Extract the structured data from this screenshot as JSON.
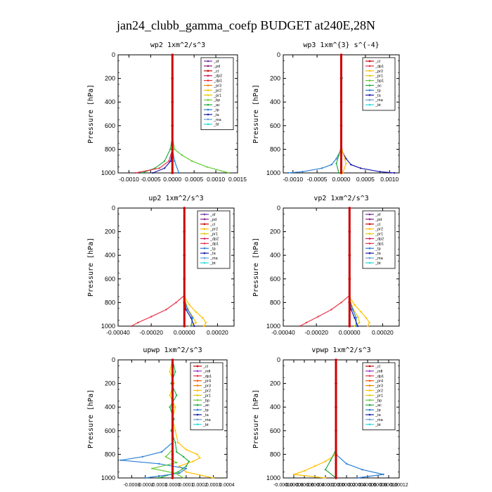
{
  "figure_title": "jan24_clubb_gamma_coefp  BUDGET at240E,28N",
  "colors": {
    "_sf": "#7030a0",
    "_pd": "#8b1a8b",
    "_cl": "#cc0000",
    "_dp2": "#d4145a",
    "_dp1": "#e8334a",
    "_pr3": "#f08000",
    "_pr2": "#ffc000",
    "_pr1": "#e6c800",
    "_bp": "#66cc33",
    "_bp1": "#66cc33",
    "_ac": "#22aa44",
    "_tp": "#2a7fd4",
    "_ta": "#1a1aaa",
    "_ma": "#6a9fd4",
    "_bt": "#22dddd",
    "_mfl": "#9933cc",
    "_pr4": "#ff5500",
    "_pr3b": "#ff9900"
  },
  "chart_data": [
    {
      "type": "line",
      "title": "wp2   1xm^2/s^3",
      "ylabel": "Pressure [hPa]",
      "xlim": [
        -0.00125,
        0.0015
      ],
      "xticks": [
        -0.001,
        -0.0005,
        0.0,
        0.0005,
        0.001,
        0.0015
      ],
      "xtick_labels": [
        "-0.0010",
        "-0.0005",
        "0.0000",
        "0.0005",
        "0.0010",
        "0.0015"
      ],
      "ylim": [
        0,
        1000
      ],
      "yticks": [
        0,
        200,
        400,
        600,
        800,
        1000
      ],
      "legend": [
        "_sf",
        "_pd",
        "_cl",
        "_dp2",
        "_dp1",
        "_pr3",
        "_pr2",
        "_pr1",
        "_bp",
        "_ac",
        "_tp",
        "_ta",
        "_ma",
        "_bt"
      ],
      "series": [
        {
          "name": "_bp",
          "y": [
            0,
            700,
            800,
            850,
            900,
            950,
            1000
          ],
          "x": [
            0,
            0,
            5e-05,
            0.00022,
            0.00045,
            0.0008,
            0.0013
          ]
        },
        {
          "name": "_ac",
          "y": [
            0,
            700,
            800,
            900,
            960,
            1000
          ],
          "x": [
            0,
            0,
            -5e-05,
            -0.00018,
            -0.0004,
            -0.0007
          ]
        },
        {
          "name": "_dp1",
          "y": [
            0,
            800,
            900,
            960,
            1000
          ],
          "x": [
            0,
            0,
            -8e-05,
            -0.0003,
            -0.00085
          ]
        },
        {
          "name": "_ta",
          "y": [
            0,
            800,
            900,
            960,
            1000
          ],
          "x": [
            0,
            0,
            -4e-05,
            -0.00018,
            -0.00045
          ]
        },
        {
          "name": "_tp",
          "y": [
            0,
            800,
            900,
            1000
          ],
          "x": [
            0,
            0,
            5e-05,
            0.00015
          ]
        },
        {
          "name": "_cl",
          "y": [
            0,
            200,
            400,
            600,
            800,
            1000
          ],
          "x": [
            0,
            0,
            0,
            0,
            0,
            0
          ]
        }
      ]
    },
    {
      "type": "line",
      "title": "wp3   1xm^{3} s^{-4}",
      "ylabel": "Pressure [hPa]",
      "xlim": [
        -0.0012,
        0.0012
      ],
      "xticks": [
        -0.001,
        -0.0005,
        0.0,
        0.0005,
        0.001
      ],
      "xtick_labels": [
        "-0.0010",
        "-0.0005",
        "0.0000",
        "0.0005",
        "0.0010"
      ],
      "ylim": [
        0,
        1000
      ],
      "yticks": [
        0,
        200,
        400,
        600,
        800,
        1000
      ],
      "legend": [
        "_cl",
        "_dp1",
        "_pr2",
        "_pr1",
        "_bp1",
        "_ac",
        "_tp",
        "_ta",
        "_ma",
        "_bt"
      ],
      "series": [
        {
          "name": "_ta",
          "y": [
            0,
            800,
            880,
            930,
            960,
            990,
            1000
          ],
          "x": [
            0,
            0,
            0.0001,
            0.0002,
            0.0004,
            0.0008,
            0.0011
          ]
        },
        {
          "name": "_tp",
          "y": [
            0,
            800,
            880,
            930,
            960,
            990,
            1000
          ],
          "x": [
            0,
            0,
            -0.0001,
            -0.0002,
            -0.0004,
            -0.0008,
            -0.0011
          ]
        },
        {
          "name": "_ac",
          "y": [
            0,
            780,
            850,
            920,
            1000
          ],
          "x": [
            0,
            0,
            -5e-05,
            -0.0001,
            -5e-05
          ]
        },
        {
          "name": "_pr2",
          "y": [
            0,
            780,
            850,
            920,
            1000
          ],
          "x": [
            0,
            0,
            5e-05,
            0.0001,
            3e-05
          ]
        },
        {
          "name": "_bt",
          "y": [
            0,
            185,
            195,
            205,
            1000
          ],
          "x": [
            0,
            0,
            2e-05,
            0,
            0
          ]
        },
        {
          "name": "_cl",
          "y": [
            0,
            200,
            400,
            600,
            800,
            1000
          ],
          "x": [
            0,
            0,
            0,
            0,
            0,
            0
          ]
        }
      ]
    },
    {
      "type": "line",
      "title": "up2   1xm^2/s^3",
      "ylabel": "Pressure [hPa]",
      "xlim": [
        -0.0004,
        0.0003
      ],
      "xticks": [
        -0.0004,
        -0.0002,
        0.0,
        0.0002
      ],
      "xtick_labels": [
        "-0.00040",
        "-0.00020",
        "0.00000",
        "0.00020"
      ],
      "ylim": [
        0,
        1000
      ],
      "yticks": [
        0,
        200,
        400,
        600,
        800,
        1000
      ],
      "legend": [
        "_sf",
        "_pd",
        "_cl",
        "_pr2",
        "_pr1",
        "_dp2",
        "_dp1",
        "_tp",
        "_ta",
        "_ma",
        "_bt"
      ],
      "series": [
        {
          "name": "_dp1",
          "y": [
            0,
            740,
            800,
            860,
            920,
            970,
            1000
          ],
          "x": [
            0,
            0,
            -5e-05,
            -0.00011,
            -0.0002,
            -0.00028,
            -0.00032
          ]
        },
        {
          "name": "_pr2",
          "y": [
            0,
            750,
            820,
            880,
            930,
            970,
            1000
          ],
          "x": [
            0,
            0,
            3e-05,
            7e-05,
            0.00011,
            0.00013,
            0.00012
          ]
        },
        {
          "name": "_pr1",
          "y": [
            0,
            760,
            850,
            920,
            970,
            1000
          ],
          "x": [
            0,
            0,
            2e-05,
            5e-05,
            7e-05,
            3e-05
          ]
        },
        {
          "name": "_tp",
          "y": [
            0,
            780,
            860,
            930,
            1000
          ],
          "x": [
            0,
            0,
            2e-05,
            5e-05,
            4e-05
          ]
        },
        {
          "name": "_ta",
          "y": [
            0,
            780,
            860,
            930,
            1000
          ],
          "x": [
            0,
            0,
            1e-05,
            4e-05,
            6e-05
          ]
        },
        {
          "name": "_cl",
          "y": [
            0,
            200,
            400,
            600,
            800,
            1000
          ],
          "x": [
            0,
            0,
            0,
            0,
            0,
            0
          ]
        }
      ]
    },
    {
      "type": "line",
      "title": "vp2   1xm^2/s^3",
      "ylabel": "Pressure [hPa]",
      "xlim": [
        -0.0004,
        0.0003
      ],
      "xticks": [
        -0.0004,
        -0.0002,
        0.0,
        0.0002
      ],
      "xtick_labels": [
        "-0.00040",
        "-0.00020",
        "0.00000",
        "0.00020"
      ],
      "ylim": [
        0,
        1000
      ],
      "yticks": [
        0,
        200,
        400,
        600,
        800,
        1000
      ],
      "legend": [
        "_sf",
        "_pd",
        "_cl",
        "_pr2",
        "_pr1",
        "_dp2",
        "_dp1",
        "_tp",
        "_ta",
        "_ma",
        "_bt"
      ],
      "series": [
        {
          "name": "_dp1",
          "y": [
            0,
            740,
            800,
            860,
            920,
            970,
            1000
          ],
          "x": [
            0,
            0,
            -5e-05,
            -0.00011,
            -0.00019,
            -0.00026,
            -0.0003
          ]
        },
        {
          "name": "_pr2",
          "y": [
            0,
            750,
            820,
            880,
            930,
            970,
            1000
          ],
          "x": [
            0,
            0,
            3e-05,
            7e-05,
            0.0001,
            0.00012,
            0.00011
          ]
        },
        {
          "name": "_pr1",
          "y": [
            0,
            760,
            850,
            920,
            970,
            1000
          ],
          "x": [
            0,
            0,
            2e-05,
            5e-05,
            6e-05,
            3e-05
          ]
        },
        {
          "name": "_tp",
          "y": [
            0,
            780,
            860,
            930,
            1000
          ],
          "x": [
            0,
            0,
            2e-05,
            4e-05,
            4e-05
          ]
        },
        {
          "name": "_ta",
          "y": [
            0,
            780,
            860,
            930,
            1000
          ],
          "x": [
            0,
            0,
            1e-05,
            3e-05,
            5e-05
          ]
        },
        {
          "name": "_cl",
          "y": [
            0,
            200,
            400,
            600,
            800,
            1000
          ],
          "x": [
            0,
            0,
            0,
            0,
            0,
            0
          ]
        }
      ]
    },
    {
      "type": "line",
      "title": "upwp   1xm^2/s^3",
      "ylabel": "Pressure [hPa]",
      "xlim": [
        -0.0004,
        0.0004
      ],
      "xticks": [
        -0.0003,
        -0.0002,
        -0.0001,
        0.0,
        0.0001,
        0.0002,
        0.0003,
        0.0004
      ],
      "xtick_labels": [
        "-0.0003",
        "-0.0002",
        "-0.0001",
        "0.0000",
        "0.0001",
        "0.0002",
        "0.0003",
        "0.0004"
      ],
      "ylim": [
        0,
        1000
      ],
      "yticks": [
        0,
        200,
        400,
        600,
        800,
        1000
      ],
      "legend": [
        "_cl",
        "_mfl",
        "_dp1",
        "_pr4",
        "_pr3",
        "_pr2",
        "_pr1",
        "_bp",
        "_ac",
        "_tp",
        "_ta",
        "_ma",
        "_bt"
      ],
      "series": [
        {
          "name": "_pr2",
          "y": [
            0,
            100,
            200,
            300,
            400,
            500,
            600,
            700,
            760,
            800,
            830,
            860,
            900,
            950,
            1000
          ],
          "x": [
            0,
            -2e-05,
            1e-05,
            -2e-05,
            2e-05,
            0,
            2e-05,
            4e-05,
            0.0001,
            0.00018,
            0.0002,
            0.00015,
            5e-05,
            0.0001,
            0.0003
          ]
        },
        {
          "name": "_ac",
          "y": [
            0,
            100,
            200,
            300,
            400,
            500,
            600,
            700,
            780,
            820,
            860,
            900,
            950,
            1000
          ],
          "x": [
            0,
            2e-05,
            -1e-05,
            3e-05,
            -2e-05,
            1e-05,
            -1e-05,
            2e-05,
            3e-05,
            8e-05,
            0.00012,
            0.0001,
            4e-05,
            -0.0001
          ]
        },
        {
          "name": "_tp",
          "y": [
            0,
            700,
            780,
            820,
            850,
            880,
            920,
            960,
            1000
          ],
          "x": [
            0,
            0,
            -8e-05,
            -0.00022,
            -0.00038,
            -0.0001,
            0.0001,
            5e-05,
            -0.0002
          ]
        },
        {
          "name": "_bp",
          "y": [
            0,
            760,
            820,
            870,
            920,
            960,
            1000
          ],
          "x": [
            0,
            0,
            -5e-05,
            3e-05,
            -0.00015,
            2e-05,
            8e-05
          ]
        },
        {
          "name": "_cl",
          "y": [
            0,
            200,
            400,
            600,
            800,
            1000
          ],
          "x": [
            0,
            0,
            0,
            0,
            0,
            0
          ]
        }
      ]
    },
    {
      "type": "line",
      "title": "vpwp   1xm^2/s^3",
      "ylabel": "Pressure [hPa]",
      "xlim": [
        -0.0001,
        0.00012
      ],
      "xticks": [
        -0.0001,
        -8e-05,
        -6e-05,
        -4e-05,
        -2e-05,
        0.0,
        2e-05,
        4e-05,
        6e-05,
        8e-05,
        0.0001,
        0.00012
      ],
      "xtick_labels": [
        "-0.00010",
        "-0.00008",
        "-0.00006",
        "-0.00004",
        "-0.00002",
        "0.00000",
        "0.00002",
        "0.00004",
        "0.00006",
        "0.00008",
        "0.00010",
        "0.00012"
      ],
      "ylim": [
        0,
        1000
      ],
      "yticks": [
        0,
        200,
        400,
        600,
        800,
        1000
      ],
      "legend": [
        "_cl",
        "_mfl",
        "_dp1",
        "_pr4",
        "_pr3",
        "_pr2",
        "_pr1",
        "_bp",
        "_ac",
        "_tp",
        "_ta",
        "_ma",
        "_bt"
      ],
      "series": [
        {
          "name": "_pr2",
          "y": [
            0,
            800,
            860,
            900,
            940,
            970,
            1000
          ],
          "x": [
            0,
            0,
            -2e-05,
            -4e-05,
            -6e-05,
            -8e-05,
            -2e-05
          ]
        },
        {
          "name": "_tp",
          "y": [
            0,
            800,
            880,
            930,
            970,
            1000
          ],
          "x": [
            0,
            0,
            2e-05,
            5e-05,
            9e-05,
            4e-05
          ]
        },
        {
          "name": "_ac",
          "y": [
            0,
            760,
            850,
            930,
            1000
          ],
          "x": [
            0,
            0,
            -1e-05,
            -2e-05,
            0
          ]
        },
        {
          "name": "_cl",
          "y": [
            0,
            200,
            400,
            600,
            800,
            1000
          ],
          "x": [
            0,
            0,
            0,
            0,
            0,
            0
          ]
        }
      ]
    }
  ]
}
